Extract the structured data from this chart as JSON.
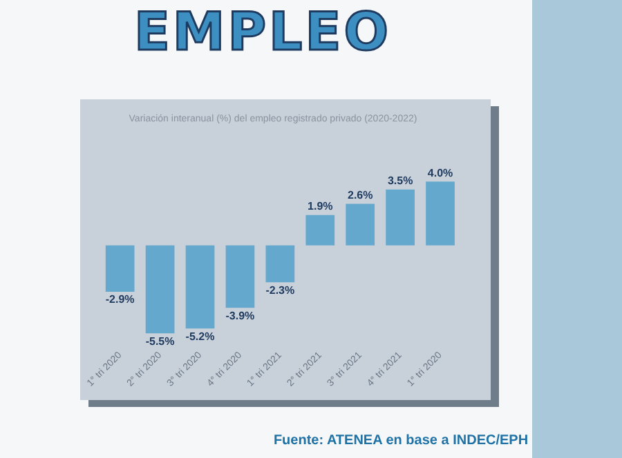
{
  "chart_data": {
    "type": "bar",
    "title": "EMPLEO",
    "subtitle": "Variación interanual (%) del empleo registrado privado (2020-2022)",
    "categories": [
      "1° tri 2020",
      "2° tri 2020",
      "3° tri 2020",
      "4° tri 2020",
      "1° tri 2021",
      "2° tri 2021",
      "3° tri 2021",
      "4° tri 2021",
      "1° tri 2020"
    ],
    "values": [
      -2.9,
      -5.5,
      -5.2,
      -3.9,
      -2.3,
      1.9,
      2.6,
      3.5,
      4.0
    ],
    "value_labels": [
      "-2.9%",
      "-5.5%",
      "-5.2%",
      "-3.9%",
      "-2.3%",
      "1.9%",
      "2.6%",
      "3.5%",
      "4.0%"
    ],
    "color": "#64a8ce",
    "tick_labels": "x",
    "grid": false,
    "legend": false,
    "annotations": [
      "Fuente: ATENEA en base a INDEC/EPH"
    ]
  }
}
